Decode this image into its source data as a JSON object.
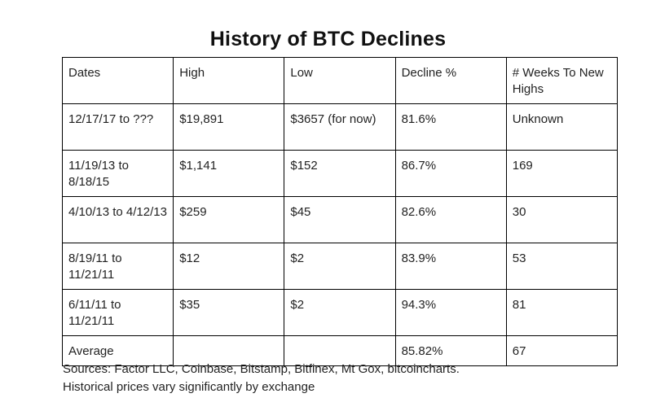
{
  "chart_data": {
    "type": "table",
    "title": "History of BTC Declines",
    "columns": [
      "Dates",
      "High",
      "Low",
      "Decline %",
      "# Weeks To New Highs"
    ],
    "rows": [
      [
        "12/17/17 to ???",
        "$19,891",
        "$3657 (for now)",
        "81.6%",
        "Unknown"
      ],
      [
        "11/19/13 to 8/18/15",
        "$1,141",
        "$152",
        "86.7%",
        "169"
      ],
      [
        "4/10/13 to 4/12/13",
        "$259",
        "$45",
        "82.6%",
        "30"
      ],
      [
        "8/19/11 to 11/21/11",
        "$12",
        "$2",
        "83.9%",
        "53"
      ],
      [
        "6/11/11 to 11/21/11",
        "$35",
        "$2",
        "94.3%",
        "81"
      ],
      [
        "Average",
        "",
        "",
        "85.82%",
        "67"
      ]
    ]
  },
  "notes": {
    "sources": "Sources: Factor LLC, Coinbase, Bitstamp, Bitfinex, Mt Gox, bitcoincharts.",
    "disclaimer": "Historical prices vary significantly by exchange"
  }
}
